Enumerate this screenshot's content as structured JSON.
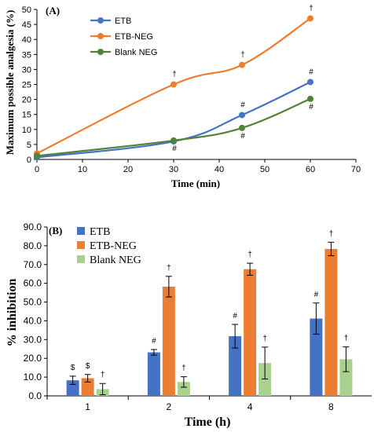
{
  "chart_data": [
    {
      "panel_label": "(A)",
      "type": "line",
      "xlabel": "Time (min)",
      "ylabel": "Maximum possible analgesia (%)",
      "xlim": [
        0,
        70
      ],
      "ylim": [
        0,
        50
      ],
      "x_ticks": [
        "0",
        "10",
        "20",
        "30",
        "40",
        "50",
        "60",
        "70"
      ],
      "y_ticks": [
        "0",
        "5",
        "10",
        "15",
        "20",
        "25",
        "30",
        "35",
        "40",
        "45",
        "50"
      ],
      "grid": false,
      "legend_position": "top-left",
      "x": [
        0,
        30,
        45,
        60
      ],
      "series": [
        {
          "name": "ETB",
          "color": "#4472C4",
          "values": [
            0.7,
            6.0,
            14.8,
            25.8
          ],
          "annotations": [
            "",
            "",
            "#",
            "#"
          ]
        },
        {
          "name": "ETB-NEG",
          "color": "#ED7D31",
          "values": [
            2.0,
            25.0,
            31.5,
            47.0
          ],
          "annotations": [
            "",
            "†",
            "†",
            "†"
          ]
        },
        {
          "name": "Blank NEG",
          "color": "#548235",
          "values": [
            1.2,
            6.3,
            10.5,
            20.2
          ],
          "annotations": [
            "",
            "#",
            "#",
            "#"
          ]
        }
      ]
    },
    {
      "panel_label": "(B)",
      "type": "bar",
      "xlabel": "Time (h)",
      "ylabel": "% inhibition",
      "ylim": [
        0,
        90
      ],
      "y_ticks": [
        "0.0",
        "10.0",
        "20.0",
        "30.0",
        "40.0",
        "50.0",
        "60.0",
        "70.0",
        "80.0",
        "90.0"
      ],
      "grid": false,
      "legend_position": "top-left",
      "categories": [
        "1",
        "2",
        "4",
        "8"
      ],
      "series": [
        {
          "name": "ETB",
          "color": "#4472C4",
          "values": [
            8.3,
            23.2,
            31.8,
            41.2
          ],
          "errors": [
            2.2,
            1.5,
            6.3,
            8.3
          ],
          "annotations": [
            "$",
            "#",
            "#",
            "#"
          ]
        },
        {
          "name": "ETB-NEG",
          "color": "#ED7D31",
          "values": [
            9.4,
            58.2,
            67.5,
            78.3
          ],
          "errors": [
            2.0,
            5.5,
            3.2,
            3.6
          ],
          "annotations": [
            "$",
            "†",
            "†",
            "†"
          ]
        },
        {
          "name": "Blank NEG",
          "color": "#A9D18E",
          "values": [
            3.6,
            7.4,
            17.5,
            19.5
          ],
          "errors": [
            3.0,
            2.8,
            8.5,
            6.6
          ],
          "annotations": [
            "†",
            "†",
            "†",
            "†"
          ]
        }
      ]
    }
  ]
}
